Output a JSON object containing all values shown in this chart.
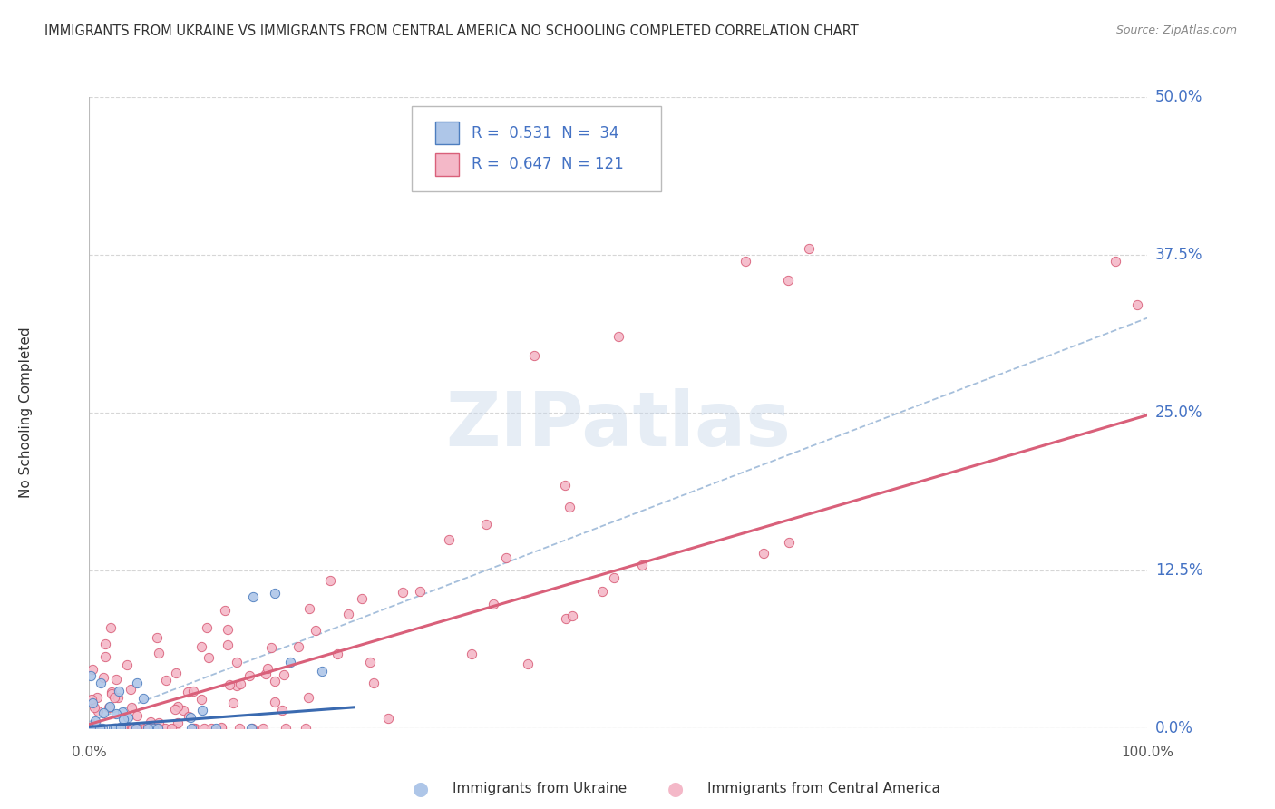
{
  "title": "IMMIGRANTS FROM UKRAINE VS IMMIGRANTS FROM CENTRAL AMERICA NO SCHOOLING COMPLETED CORRELATION CHART",
  "source": "Source: ZipAtlas.com",
  "ylabel": "No Schooling Completed",
  "watermark": "ZIPatlas",
  "xlim": [
    0.0,
    1.0
  ],
  "ylim": [
    0.0,
    0.5
  ],
  "yticks": [
    0.0,
    0.125,
    0.25,
    0.375,
    0.5
  ],
  "ytick_labels": [
    "0.0%",
    "12.5%",
    "25.0%",
    "37.5%",
    "50.0%"
  ],
  "background_color": "#ffffff",
  "grid_color": "#cccccc",
  "ukraine_fill": "#aec6e8",
  "ukraine_edge": "#4d7ebf",
  "ca_fill": "#f4b8c8",
  "ca_edge": "#d9607a",
  "ukraine_trend_color": "#3a6ab0",
  "ca_trend_color": "#d9607a",
  "dash_color": "#88aad0",
  "ukraine_trend_slope": 0.062,
  "ukraine_trend_intercept": 0.001,
  "ca_trend_slope": 0.245,
  "ca_trend_intercept": 0.003,
  "dash_slope": 0.32,
  "dash_intercept": 0.005,
  "legend_ukraine_label": "R =  0.531  N =  34",
  "legend_ca_label": "R =  0.647  N = 121",
  "bottom_legend_ukraine": "Immigrants from Ukraine",
  "bottom_legend_ca": "Immigrants from Central America"
}
